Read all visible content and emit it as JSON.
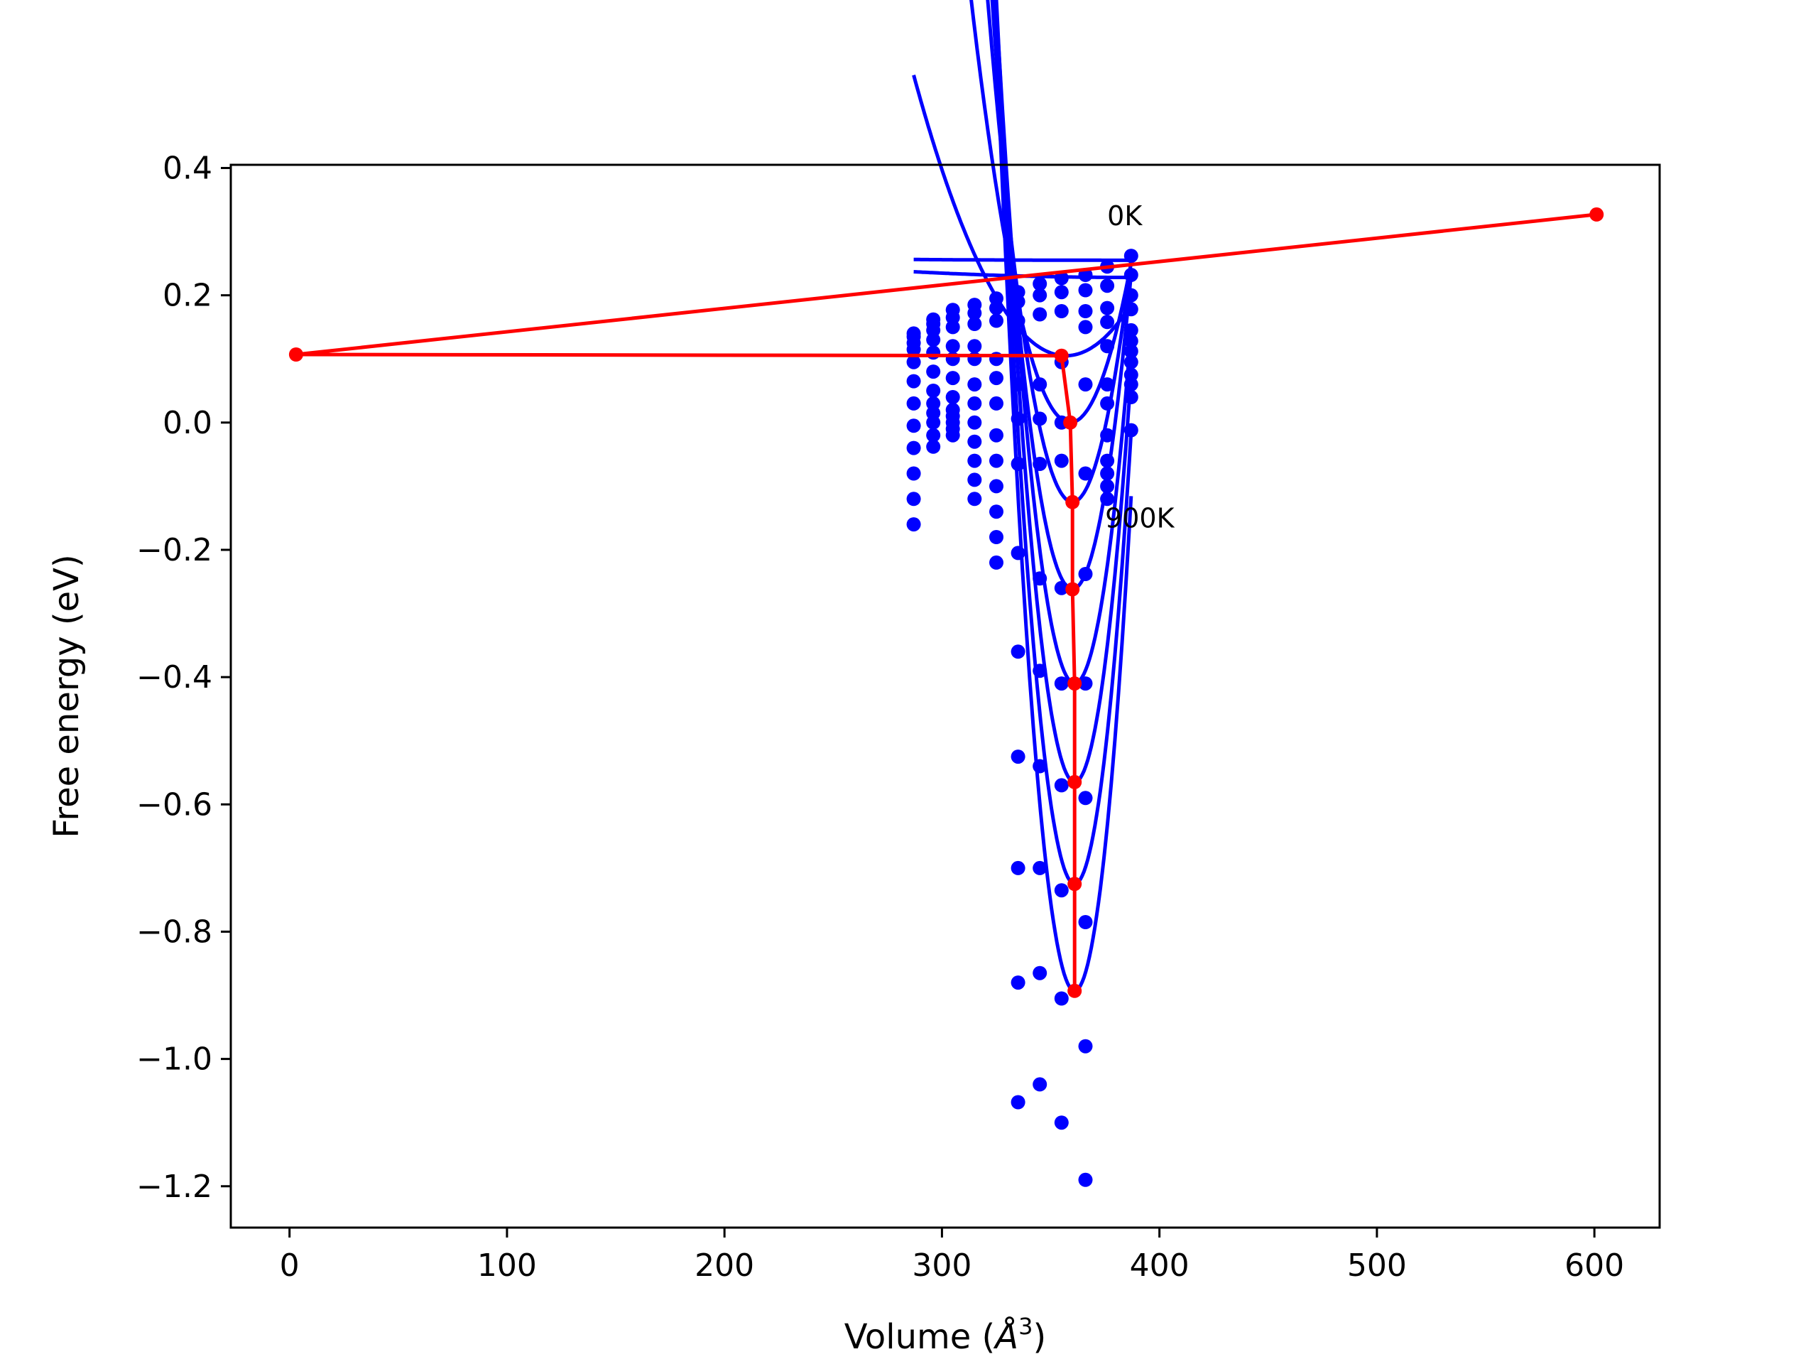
{
  "chart_data": {
    "type": "scatter",
    "title": "",
    "xlabel": "Volume (Å³)",
    "xlabel_main": "Volume (",
    "xlabel_unit": "Å",
    "xlabel_sup": "3",
    "xlabel_close": ")",
    "ylabel": "Free energy (eV)",
    "xlim": [
      -27,
      630
    ],
    "ylim": [
      -1.265,
      0.405
    ],
    "xticks": [
      0,
      100,
      200,
      300,
      400,
      500,
      600
    ],
    "yticks": [
      0.4,
      0.2,
      0.0,
      -0.2,
      -0.4,
      -0.6,
      -0.8,
      -1.0,
      -1.2
    ],
    "xtick_labels": [
      "0",
      "100",
      "200",
      "300",
      "400",
      "500",
      "600"
    ],
    "ytick_labels": [
      "0.4",
      "0.2",
      "0.0",
      "−0.2",
      "−0.4",
      "−0.6",
      "−0.8",
      "−1.0",
      "−1.2"
    ],
    "grid": false,
    "annotations": [
      {
        "text": "0K",
        "x": 376,
        "y": 0.31
      },
      {
        "text": "900K",
        "x": 375,
        "y": -0.165
      }
    ],
    "colors": {
      "points": "#0000ff",
      "fits": "#0000ff",
      "equilibrium": "#ff0000"
    },
    "volumes": [
      287,
      296,
      305,
      315,
      325,
      335,
      345,
      355,
      366,
      376,
      387
    ],
    "temperature_series": [
      {
        "energies": [
          0.14,
          0.162,
          0.177,
          0.185,
          0.195,
          0.205,
          0.218,
          0.227,
          0.232,
          0.245,
          0.262
        ]
      },
      {
        "energies": [
          0.135,
          0.155,
          0.165,
          0.172,
          0.18,
          0.19,
          0.2,
          0.205,
          0.208,
          0.215,
          0.232
        ]
      },
      {
        "energies": [
          0.125,
          0.145,
          0.15,
          0.155,
          0.16,
          0.16,
          0.17,
          0.175,
          0.175,
          0.18,
          0.2
        ]
      },
      {
        "energies": [
          0.115,
          0.13,
          0.12,
          0.12,
          0.1,
          0.06,
          0.06,
          0.095,
          0.15,
          0.158,
          0.178
        ]
      },
      {
        "energies": [
          0.095,
          0.11,
          0.1,
          0.1,
          0.07,
          0.006,
          0.006,
          0.0,
          0.06,
          0.12,
          0.145
        ]
      },
      {
        "energies": [
          0.065,
          0.08,
          0.07,
          0.06,
          0.03,
          -0.065,
          -0.065,
          -0.06,
          -0.08,
          0.06,
          0.128
        ]
      },
      {
        "energies": [
          0.03,
          0.05,
          0.04,
          0.03,
          -0.02,
          -0.205,
          -0.245,
          -0.26,
          -0.238,
          0.03,
          0.112
        ]
      },
      {
        "energies": [
          -0.005,
          0.03,
          0.02,
          0.0,
          -0.06,
          -0.36,
          -0.39,
          -0.41,
          -0.41,
          -0.02,
          0.095
        ]
      },
      {
        "energies": [
          -0.04,
          0.015,
          0.01,
          -0.03,
          -0.1,
          -0.525,
          -0.54,
          -0.57,
          -0.59,
          -0.06,
          0.075
        ]
      },
      {
        "energies": [
          -0.08,
          0.0,
          0.0,
          -0.06,
          -0.14,
          -0.7,
          -0.7,
          -0.735,
          -0.785,
          -0.08,
          0.06
        ]
      },
      {
        "energies": [
          -0.12,
          -0.02,
          -0.01,
          -0.09,
          -0.18,
          -0.88,
          -0.865,
          -0.905,
          -0.98,
          -0.1,
          0.04
        ]
      },
      {
        "energies": [
          -0.16,
          -0.038,
          -0.02,
          -0.12,
          -0.22,
          -1.068,
          -1.04,
          -1.1,
          -1.19,
          -0.12,
          -0.012
        ]
      }
    ],
    "fit_curves": [
      {
        "v0": 387,
        "e0": 0.255,
        "b": 1.2e-07
      },
      {
        "v0": 387,
        "e0": 0.228,
        "b": 9e-07
      },
      {
        "v0": 357,
        "e0": 0.105,
        "b": 9e-05
      },
      {
        "v0": 359,
        "e0": 0.0,
        "b": 0.00032
      },
      {
        "v0": 360,
        "e0": -0.125,
        "b": 0.00052
      },
      {
        "v0": 360,
        "e0": -0.262,
        "b": 0.00068
      },
      {
        "v0": 361,
        "e0": -0.41,
        "b": 0.00082
      },
      {
        "v0": 361,
        "e0": -0.565,
        "b": 0.00095
      },
      {
        "v0": 361,
        "e0": -0.725,
        "b": 0.00105
      },
      {
        "v0": 361,
        "e0": -0.893,
        "b": 0.00115
      }
    ],
    "equilibrium_line": {
      "x": [
        601,
        3,
        355,
        359,
        360,
        360,
        361,
        361,
        361,
        361
      ],
      "y": [
        0.327,
        0.107,
        0.105,
        0.0,
        -0.125,
        -0.262,
        -0.41,
        -0.565,
        -0.725,
        -0.893
      ]
    }
  }
}
